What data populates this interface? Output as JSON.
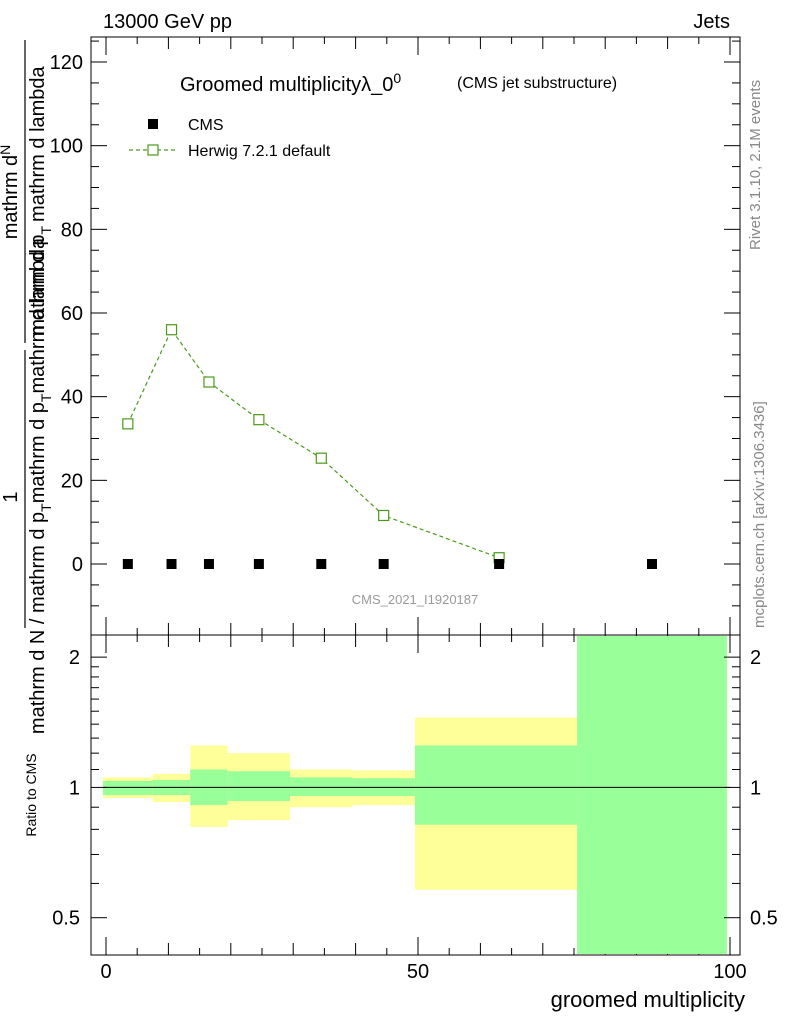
{
  "header": {
    "left": "13000 GeV pp",
    "right": "Jets"
  },
  "side": {
    "rivet": "Rivet 3.1.10,  2.1M events",
    "mcplots": "mcplots.cern.ch [arXiv:1306.3436]"
  },
  "chart_data": [
    {
      "type": "scatter",
      "title": "Groomed multiplicityλ_0",
      "title_sup": "0",
      "subtitle": "(CMS jet substructure)",
      "watermark": "CMS_2021_I1920187",
      "ylabel_num": "1",
      "ylabel_num2": "mathrm dᴺ",
      "ylabel_num2_plain": "mathrm d",
      "ylabel_num2_sup": "N",
      "ylabel_denom_top": "mathrm d p",
      "ylabel_denom_top_sub": "T",
      "ylabel_denom_top_tail": "mathrm d lambda",
      "ylabel_denom_bottom": "mathrm d N / mathrm d p",
      "ylabel_denom_bottom_sub": "T",
      "ylabel_denom_bottom_tail": "mathrm d p",
      "ylabel_denom_bottom_sub2": "T",
      "ylabel_denom_bottom_tail2": "mathrm d lambda",
      "xlim": [
        -2,
        100
      ],
      "ylim": [
        -15,
        127
      ],
      "yticks": [
        0,
        20,
        40,
        60,
        80,
        100,
        120
      ],
      "legend": [
        {
          "name": "CMS",
          "marker": "filled-square",
          "color": "#000000"
        },
        {
          "name": "Herwig 7.2.1 default",
          "marker": "open-square",
          "color": "#4a9a1a"
        }
      ],
      "series": [
        {
          "name": "CMS",
          "x": [
            3.5,
            10.5,
            16.5,
            24.5,
            34.5,
            44.5,
            63,
            87.5
          ],
          "y": [
            0,
            0,
            0,
            0,
            0,
            0,
            0,
            0
          ]
        },
        {
          "name": "Herwig 7.2.1 default",
          "x": [
            3.5,
            10.5,
            16.5,
            24.5,
            34.5,
            44.5,
            63
          ],
          "y": [
            33.5,
            56,
            43.5,
            34.5,
            25.3,
            11.6,
            1.5
          ]
        }
      ]
    },
    {
      "type": "area",
      "ylabel": "Ratio to CMS",
      "xlabel": "groomed multiplicity",
      "xlim": [
        -2,
        100
      ],
      "ylim": [
        0.41,
        2.25
      ],
      "yscale": "log",
      "xticks": [
        0,
        50,
        100
      ],
      "yticks": [
        0.5,
        1,
        2
      ],
      "bins": [
        {
          "x0": -0.5,
          "x1": 7.5,
          "yellow": [
            0.945,
            1.055
          ],
          "green": [
            0.96,
            1.035
          ]
        },
        {
          "x0": 7.5,
          "x1": 13.5,
          "yellow": [
            0.925,
            1.075
          ],
          "green": [
            0.96,
            1.04
          ]
        },
        {
          "x0": 13.5,
          "x1": 19.5,
          "yellow": [
            0.81,
            1.25
          ],
          "green": [
            0.91,
            1.1
          ]
        },
        {
          "x0": 19.5,
          "x1": 29.5,
          "yellow": [
            0.84,
            1.2
          ],
          "green": [
            0.93,
            1.09
          ]
        },
        {
          "x0": 29.5,
          "x1": 39.5,
          "yellow": [
            0.9,
            1.1
          ],
          "green": [
            0.955,
            1.055
          ]
        },
        {
          "x0": 39.5,
          "x1": 49.5,
          "yellow": [
            0.91,
            1.095
          ],
          "green": [
            0.955,
            1.05
          ]
        },
        {
          "x0": 49.5,
          "x1": 75.5,
          "yellow": [
            0.58,
            1.45
          ],
          "green": [
            0.82,
            1.25
          ]
        },
        {
          "x0": 75.5,
          "x1": 99.5,
          "yellow": [
            0.41,
            2.25
          ],
          "green": [
            0.41,
            2.25
          ]
        }
      ]
    }
  ]
}
